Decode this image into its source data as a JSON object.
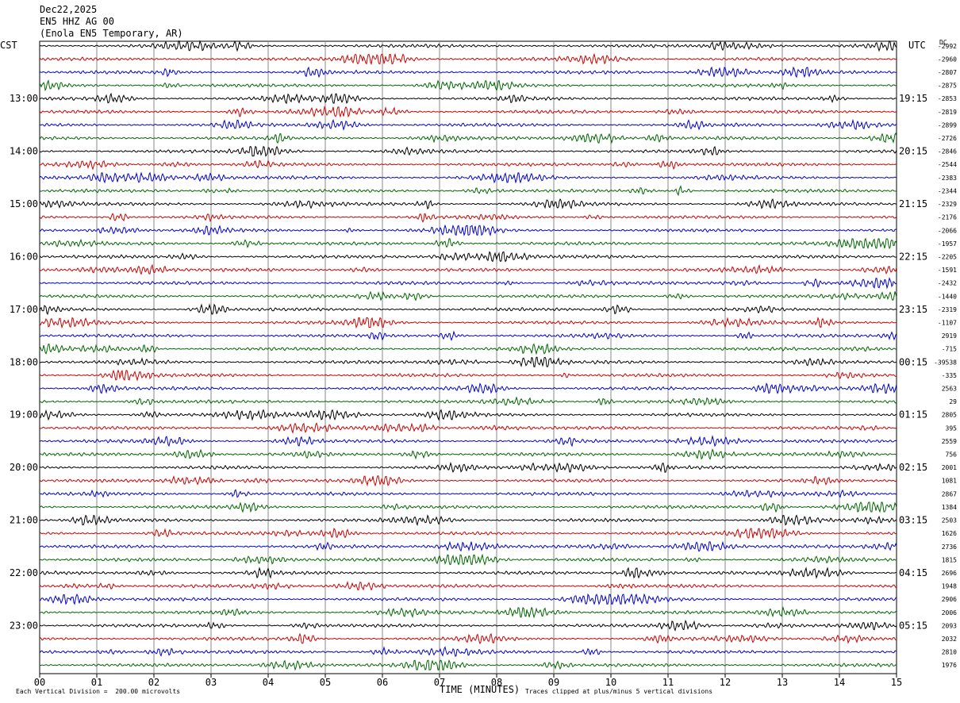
{
  "header": {
    "date": "Dec22,2025",
    "station_line": "EN5 HHZ AG 00",
    "location_line": "(Enola EN5 Temporary, AR)"
  },
  "axes": {
    "left_tz": "CST",
    "right_tz": "UTC",
    "dc_label": "DC",
    "xlabel": "TIME (MINUTES)"
  },
  "footer": {
    "scale_note": "Each Vertical Division =  200.00 microvolts",
    "clip_note": "Traces clipped at plus/minus 5 vertical divisions"
  },
  "colors": {
    "trace_cycle": [
      "#000000",
      "#cc0000",
      "#0000cc",
      "#006600"
    ],
    "grid": "#000000"
  },
  "chart_data": {
    "type": "line",
    "x": {
      "min": 0,
      "max": 15,
      "tick_labels": [
        "00",
        "01",
        "02",
        "03",
        "04",
        "05",
        "06",
        "07",
        "08",
        "09",
        "10",
        "11",
        "12",
        "13",
        "14",
        "15"
      ]
    },
    "rows_per_hour": 4,
    "row_count": 48,
    "left_hour_labels": [
      {
        "row": 4,
        "label": "13:00"
      },
      {
        "row": 8,
        "label": "14:00"
      },
      {
        "row": 12,
        "label": "15:00"
      },
      {
        "row": 16,
        "label": "16:00"
      },
      {
        "row": 20,
        "label": "17:00"
      },
      {
        "row": 24,
        "label": "18:00"
      },
      {
        "row": 28,
        "label": "19:00"
      },
      {
        "row": 32,
        "label": "20:00"
      },
      {
        "row": 36,
        "label": "21:00"
      },
      {
        "row": 40,
        "label": "22:00"
      },
      {
        "row": 44,
        "label": "23:00"
      }
    ],
    "right_hour_labels": [
      {
        "row": 4,
        "label": "19:15"
      },
      {
        "row": 8,
        "label": "20:15"
      },
      {
        "row": 12,
        "label": "21:15"
      },
      {
        "row": 16,
        "label": "22:15"
      },
      {
        "row": 20,
        "label": "23:15"
      },
      {
        "row": 24,
        "label": "00:15"
      },
      {
        "row": 28,
        "label": "01:15"
      },
      {
        "row": 32,
        "label": "02:15"
      },
      {
        "row": 36,
        "label": "03:15"
      },
      {
        "row": 40,
        "label": "04:15"
      },
      {
        "row": 44,
        "label": "05:15"
      }
    ],
    "dc_offsets": [
      "-2992",
      "-2960",
      "-2807",
      "-2875",
      "-2853",
      "-2819",
      "-2899",
      "-2726",
      "-2846",
      "-2544",
      "-2383",
      "-2344",
      "-2329",
      "-2176",
      "-2066",
      "-1957",
      "-2205",
      "-1591",
      "-2432",
      "-1440",
      "-2319",
      "-1107",
      "2919",
      "-715",
      "-39538",
      "-335",
      "2563",
      "29",
      "2805",
      "395",
      "2559",
      "756",
      "2001",
      "1081",
      "2867",
      "1384",
      "2503",
      "1626",
      "2736",
      "1815",
      "2696",
      "1948",
      "2906",
      "2006",
      "2093",
      "2032",
      "2810",
      "1976"
    ]
  }
}
